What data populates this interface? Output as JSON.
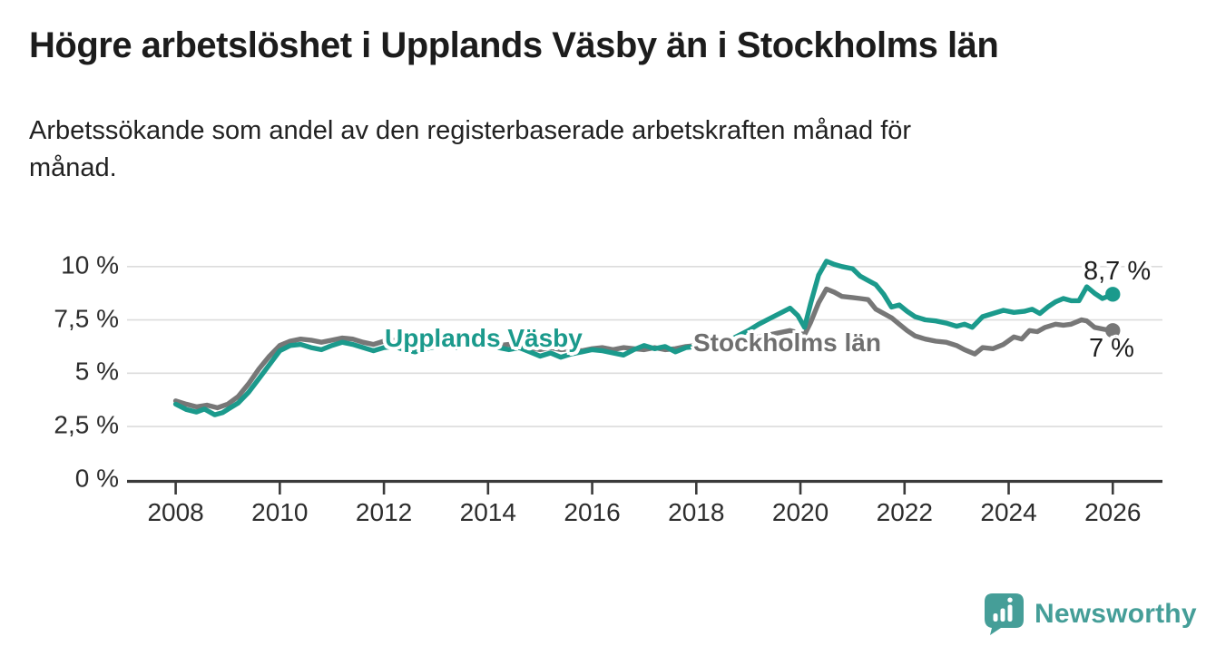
{
  "chart_data": {
    "type": "line",
    "title": "Högre arbetslöshet i Upplands Väsby än i Stockholms län",
    "subtitle_lines": [
      "Arbetssökande som andel av den registerbaserade arbetskraften månad för",
      "månad."
    ],
    "xlabel": "",
    "ylabel": "",
    "unit": "%",
    "grid": "horizontal",
    "legend": "inline-labels-on-lines",
    "x_range": [
      2007.1,
      2026.95
    ],
    "y_range": [
      0,
      10.7
    ],
    "x_tick_labels": [
      "2008",
      "2010",
      "2012",
      "2014",
      "2016",
      "2018",
      "2020",
      "2022",
      "2024",
      "2026"
    ],
    "x_tick_values": [
      2008,
      2010,
      2012,
      2014,
      2016,
      2018,
      2020,
      2022,
      2024,
      2026
    ],
    "y_tick_labels": [
      "10 %",
      "7,5 %",
      "5 %",
      "2,5 %",
      "0 %"
    ],
    "y_tick_values": [
      10,
      7.5,
      5,
      2.5,
      0
    ],
    "axis_color": "#3a3a3a",
    "gridline_color": "#dcdcdc",
    "series": [
      {
        "name": "Upplands Väsby",
        "color": "#1b9a8c",
        "end_label": "8,7 %",
        "end_value": 8.7,
        "points": [
          [
            2008.0,
            3.55
          ],
          [
            2008.2,
            3.3
          ],
          [
            2008.4,
            3.18
          ],
          [
            2008.55,
            3.32
          ],
          [
            2008.75,
            3.05
          ],
          [
            2008.9,
            3.15
          ],
          [
            2009.0,
            3.3
          ],
          [
            2009.2,
            3.6
          ],
          [
            2009.4,
            4.1
          ],
          [
            2009.6,
            4.75
          ],
          [
            2009.8,
            5.4
          ],
          [
            2010.0,
            6.05
          ],
          [
            2010.2,
            6.3
          ],
          [
            2010.4,
            6.35
          ],
          [
            2010.6,
            6.2
          ],
          [
            2010.8,
            6.1
          ],
          [
            2011.0,
            6.3
          ],
          [
            2011.2,
            6.45
          ],
          [
            2011.4,
            6.35
          ],
          [
            2011.6,
            6.2
          ],
          [
            2011.8,
            6.05
          ],
          [
            2012.0,
            6.2
          ],
          [
            2012.2,
            6.25
          ],
          [
            2012.4,
            6.1
          ],
          [
            2012.6,
            6.0
          ],
          [
            2012.8,
            6.15
          ],
          [
            2013.0,
            6.25
          ],
          [
            2013.2,
            6.3
          ],
          [
            2013.4,
            6.2
          ],
          [
            2013.6,
            6.3
          ],
          [
            2013.8,
            6.25
          ],
          [
            2014.0,
            6.3
          ],
          [
            2014.2,
            6.2
          ],
          [
            2014.4,
            6.1
          ],
          [
            2014.6,
            6.2
          ],
          [
            2014.8,
            6.0
          ],
          [
            2015.0,
            5.8
          ],
          [
            2015.2,
            5.95
          ],
          [
            2015.4,
            5.75
          ],
          [
            2015.6,
            5.9
          ],
          [
            2015.8,
            6.0
          ],
          [
            2016.0,
            6.1
          ],
          [
            2016.2,
            6.05
          ],
          [
            2016.4,
            5.95
          ],
          [
            2016.6,
            5.85
          ],
          [
            2016.8,
            6.1
          ],
          [
            2017.0,
            6.3
          ],
          [
            2017.2,
            6.15
          ],
          [
            2017.4,
            6.25
          ],
          [
            2017.6,
            6.0
          ],
          [
            2017.8,
            6.2
          ],
          [
            2018.0,
            6.25
          ],
          [
            2018.2,
            6.2
          ],
          [
            2018.4,
            6.35
          ],
          [
            2018.6,
            6.5
          ],
          [
            2018.8,
            6.75
          ],
          [
            2019.0,
            7.0
          ],
          [
            2019.2,
            7.3
          ],
          [
            2019.4,
            7.55
          ],
          [
            2019.6,
            7.8
          ],
          [
            2019.8,
            8.05
          ],
          [
            2019.95,
            7.7
          ],
          [
            2020.08,
            7.15
          ],
          [
            2020.2,
            8.3
          ],
          [
            2020.35,
            9.6
          ],
          [
            2020.5,
            10.25
          ],
          [
            2020.65,
            10.1
          ],
          [
            2020.8,
            10.0
          ],
          [
            2021.0,
            9.9
          ],
          [
            2021.15,
            9.55
          ],
          [
            2021.3,
            9.35
          ],
          [
            2021.45,
            9.15
          ],
          [
            2021.6,
            8.7
          ],
          [
            2021.75,
            8.1
          ],
          [
            2021.9,
            8.2
          ],
          [
            2022.05,
            7.9
          ],
          [
            2022.2,
            7.65
          ],
          [
            2022.4,
            7.5
          ],
          [
            2022.6,
            7.45
          ],
          [
            2022.8,
            7.35
          ],
          [
            2023.0,
            7.2
          ],
          [
            2023.15,
            7.3
          ],
          [
            2023.3,
            7.15
          ],
          [
            2023.5,
            7.65
          ],
          [
            2023.7,
            7.8
          ],
          [
            2023.9,
            7.95
          ],
          [
            2024.1,
            7.85
          ],
          [
            2024.3,
            7.9
          ],
          [
            2024.45,
            8.0
          ],
          [
            2024.6,
            7.8
          ],
          [
            2024.75,
            8.1
          ],
          [
            2024.9,
            8.35
          ],
          [
            2025.05,
            8.5
          ],
          [
            2025.2,
            8.4
          ],
          [
            2025.35,
            8.4
          ],
          [
            2025.5,
            9.05
          ],
          [
            2025.65,
            8.75
          ],
          [
            2025.8,
            8.5
          ],
          [
            2025.9,
            8.6
          ],
          [
            2026.0,
            8.7
          ]
        ]
      },
      {
        "name": "Stockholms län",
        "color": "#777777",
        "end_label": "7 %",
        "end_value": 7.0,
        "points": [
          [
            2008.0,
            3.7
          ],
          [
            2008.2,
            3.55
          ],
          [
            2008.4,
            3.42
          ],
          [
            2008.6,
            3.5
          ],
          [
            2008.8,
            3.38
          ],
          [
            2009.0,
            3.55
          ],
          [
            2009.2,
            3.9
          ],
          [
            2009.4,
            4.5
          ],
          [
            2009.6,
            5.2
          ],
          [
            2009.8,
            5.8
          ],
          [
            2010.0,
            6.3
          ],
          [
            2010.2,
            6.5
          ],
          [
            2010.4,
            6.6
          ],
          [
            2010.6,
            6.55
          ],
          [
            2010.8,
            6.45
          ],
          [
            2011.0,
            6.55
          ],
          [
            2011.2,
            6.65
          ],
          [
            2011.4,
            6.6
          ],
          [
            2011.6,
            6.45
          ],
          [
            2011.8,
            6.35
          ],
          [
            2012.0,
            6.5
          ],
          [
            2012.2,
            6.55
          ],
          [
            2012.4,
            6.45
          ],
          [
            2012.6,
            6.35
          ],
          [
            2012.8,
            6.4
          ],
          [
            2013.0,
            6.45
          ],
          [
            2013.2,
            6.5
          ],
          [
            2013.4,
            6.4
          ],
          [
            2013.6,
            6.45
          ],
          [
            2013.8,
            6.35
          ],
          [
            2014.0,
            6.4
          ],
          [
            2014.2,
            6.3
          ],
          [
            2014.4,
            6.35
          ],
          [
            2014.6,
            6.25
          ],
          [
            2014.8,
            6.2
          ],
          [
            2015.0,
            6.1
          ],
          [
            2015.2,
            6.2
          ],
          [
            2015.4,
            6.1
          ],
          [
            2015.6,
            6.15
          ],
          [
            2015.8,
            6.05
          ],
          [
            2016.0,
            6.15
          ],
          [
            2016.2,
            6.2
          ],
          [
            2016.4,
            6.1
          ],
          [
            2016.6,
            6.2
          ],
          [
            2016.8,
            6.15
          ],
          [
            2017.0,
            6.1
          ],
          [
            2017.2,
            6.2
          ],
          [
            2017.4,
            6.1
          ],
          [
            2017.6,
            6.15
          ],
          [
            2017.8,
            6.25
          ],
          [
            2018.0,
            6.3
          ],
          [
            2018.2,
            6.25
          ],
          [
            2018.4,
            6.3
          ],
          [
            2018.6,
            6.4
          ],
          [
            2018.8,
            6.5
          ],
          [
            2019.0,
            6.6
          ],
          [
            2019.2,
            6.7
          ],
          [
            2019.4,
            6.8
          ],
          [
            2019.6,
            6.9
          ],
          [
            2019.8,
            7.0
          ],
          [
            2019.95,
            6.9
          ],
          [
            2020.08,
            6.8
          ],
          [
            2020.2,
            7.4
          ],
          [
            2020.35,
            8.3
          ],
          [
            2020.5,
            8.95
          ],
          [
            2020.65,
            8.8
          ],
          [
            2020.8,
            8.6
          ],
          [
            2021.0,
            8.55
          ],
          [
            2021.15,
            8.5
          ],
          [
            2021.3,
            8.45
          ],
          [
            2021.45,
            8.0
          ],
          [
            2021.6,
            7.8
          ],
          [
            2021.75,
            7.6
          ],
          [
            2021.9,
            7.3
          ],
          [
            2022.05,
            7.0
          ],
          [
            2022.2,
            6.75
          ],
          [
            2022.4,
            6.6
          ],
          [
            2022.6,
            6.5
          ],
          [
            2022.8,
            6.45
          ],
          [
            2023.0,
            6.3
          ],
          [
            2023.15,
            6.1
          ],
          [
            2023.35,
            5.9
          ],
          [
            2023.5,
            6.2
          ],
          [
            2023.7,
            6.15
          ],
          [
            2023.9,
            6.35
          ],
          [
            2024.1,
            6.7
          ],
          [
            2024.25,
            6.6
          ],
          [
            2024.4,
            7.0
          ],
          [
            2024.55,
            6.95
          ],
          [
            2024.7,
            7.15
          ],
          [
            2024.9,
            7.3
          ],
          [
            2025.05,
            7.25
          ],
          [
            2025.2,
            7.3
          ],
          [
            2025.4,
            7.5
          ],
          [
            2025.5,
            7.45
          ],
          [
            2025.65,
            7.15
          ],
          [
            2025.85,
            7.05
          ],
          [
            2026.0,
            7.0
          ]
        ]
      }
    ]
  },
  "footer": {
    "brand": "Newsworthy",
    "brand_color": "#459e98",
    "logo_icon": "bar-chart-speech-bubble-icon"
  }
}
